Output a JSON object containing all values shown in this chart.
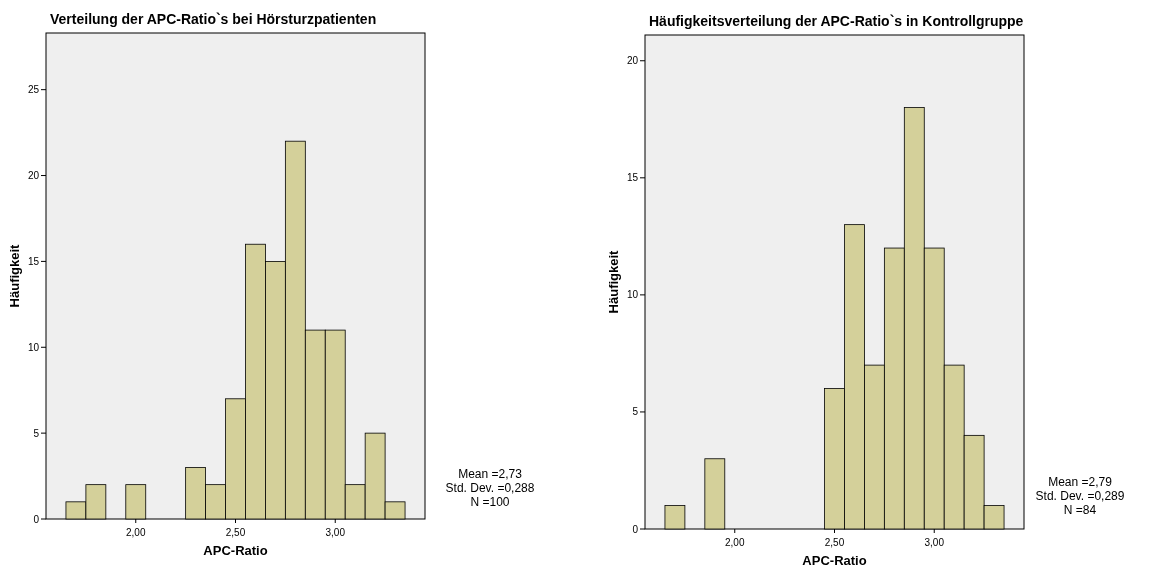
{
  "chart_data": [
    {
      "type": "histogram",
      "title": "Verteilung der APC-Ratio`s bei Hörsturzpatienten",
      "xlabel": "APC-Ratio",
      "ylabel": "Häufigkeit",
      "color": "#d4d09a",
      "bins": [
        1.65,
        1.75,
        1.85,
        1.95,
        2.05,
        2.15,
        2.25,
        2.35,
        2.45,
        2.55,
        2.65,
        2.75,
        2.85,
        2.95,
        3.05,
        3.15,
        3.25,
        3.35
      ],
      "values": [
        1,
        2,
        0,
        2,
        0,
        0,
        3,
        2,
        7,
        16,
        15,
        22,
        11,
        11,
        2,
        5,
        1
      ],
      "xlim": [
        1.55,
        3.45
      ],
      "xticks": [
        {
          "value": 2,
          "label": "2,00"
        },
        {
          "value": 2.5,
          "label": "2,50"
        },
        {
          "value": 3,
          "label": "3,00"
        }
      ],
      "ylim": [
        0,
        28.3
      ],
      "yticks": [
        0,
        5,
        10,
        15,
        20,
        25
      ],
      "annotations": [
        "Mean =2,73",
        "Std. Dev. =0,288",
        "N =100"
      ]
    },
    {
      "type": "histogram",
      "title": "Häufigkeitsverteilung der APC-Ratio`s in Kontrollgruppe",
      "xlabel": "APC-Ratio",
      "ylabel": "Häufigkeit",
      "color": "#d4d09a",
      "bins": [
        1.65,
        1.75,
        1.85,
        1.95,
        2.05,
        2.15,
        2.25,
        2.35,
        2.45,
        2.55,
        2.65,
        2.75,
        2.85,
        2.95,
        3.05,
        3.15,
        3.25,
        3.35
      ],
      "values": [
        1,
        0,
        3,
        0,
        0,
        0,
        0,
        0,
        6,
        13,
        7,
        12,
        18,
        12,
        7,
        4,
        1
      ],
      "xlim": [
        1.55,
        3.45
      ],
      "xticks": [
        {
          "value": 2,
          "label": "2,00"
        },
        {
          "value": 2.5,
          "label": "2,50"
        },
        {
          "value": 3,
          "label": "3,00"
        }
      ],
      "ylim": [
        0,
        21.1
      ],
      "yticks": [
        0,
        5,
        10,
        15,
        20
      ],
      "annotations": [
        "Mean =2,79",
        "Std. Dev. =0,289",
        "N =84"
      ]
    }
  ]
}
